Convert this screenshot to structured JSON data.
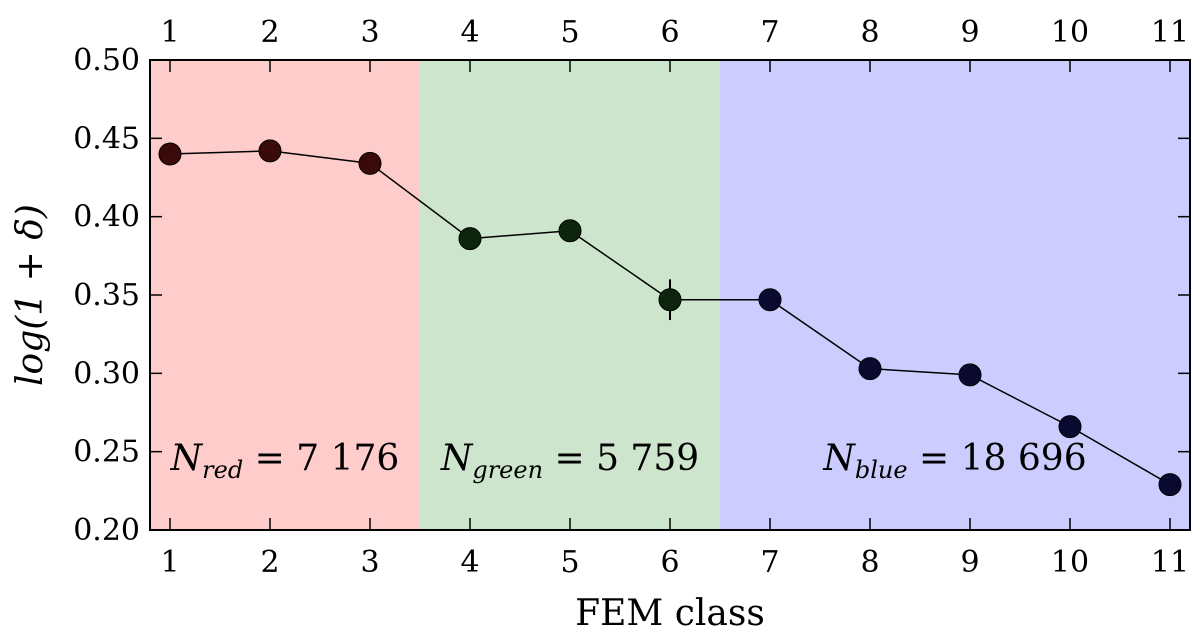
{
  "chart_data": {
    "type": "line",
    "xlabel": "FEM class",
    "ylabel": "log(1 + δ)",
    "xlim": [
      0.8,
      11.2
    ],
    "ylim": [
      0.2,
      0.5
    ],
    "x_ticks": [
      1,
      2,
      3,
      4,
      5,
      6,
      7,
      8,
      9,
      10,
      11
    ],
    "y_ticks": [
      "0.20",
      "0.25",
      "0.30",
      "0.35",
      "0.40",
      "0.45",
      "0.50"
    ],
    "grid": false,
    "points": [
      {
        "x": 1,
        "y": 0.44,
        "err": 0.003,
        "color": "#3a0a0a"
      },
      {
        "x": 2,
        "y": 0.442,
        "err": 0.006,
        "color": "#3a0a0a"
      },
      {
        "x": 3,
        "y": 0.434,
        "err": 0.004,
        "color": "#3a0a0a"
      },
      {
        "x": 4,
        "y": 0.386,
        "err": 0.003,
        "color": "#0d240d"
      },
      {
        "x": 5,
        "y": 0.391,
        "err": 0.006,
        "color": "#0d240d"
      },
      {
        "x": 6,
        "y": 0.347,
        "err": 0.013,
        "color": "#0d240d"
      },
      {
        "x": 7,
        "y": 0.347,
        "err": 0.004,
        "color": "#0a0a30"
      },
      {
        "x": 8,
        "y": 0.303,
        "err": 0.007,
        "color": "#0a0a30"
      },
      {
        "x": 9,
        "y": 0.299,
        "err": 0.004,
        "color": "#0a0a30"
      },
      {
        "x": 10,
        "y": 0.266,
        "err": 0.004,
        "color": "#0a0a30"
      },
      {
        "x": 11,
        "y": 0.229,
        "err": 0.007,
        "color": "#0a0a30"
      }
    ],
    "regions": [
      {
        "x_from": 0.8,
        "x_to": 3.5,
        "color": "#ffcccc",
        "label_main": "N",
        "label_sub": "red",
        "label_value": " = 7 176"
      },
      {
        "x_from": 3.5,
        "x_to": 6.5,
        "color": "#cce5cc",
        "label_main": "N",
        "label_sub": "green",
        "label_value": " = 5 759"
      },
      {
        "x_from": 6.5,
        "x_to": 11.2,
        "color": "#ccccff",
        "label_main": "N",
        "label_sub": "blue",
        "label_value": " = 18 696"
      }
    ]
  }
}
